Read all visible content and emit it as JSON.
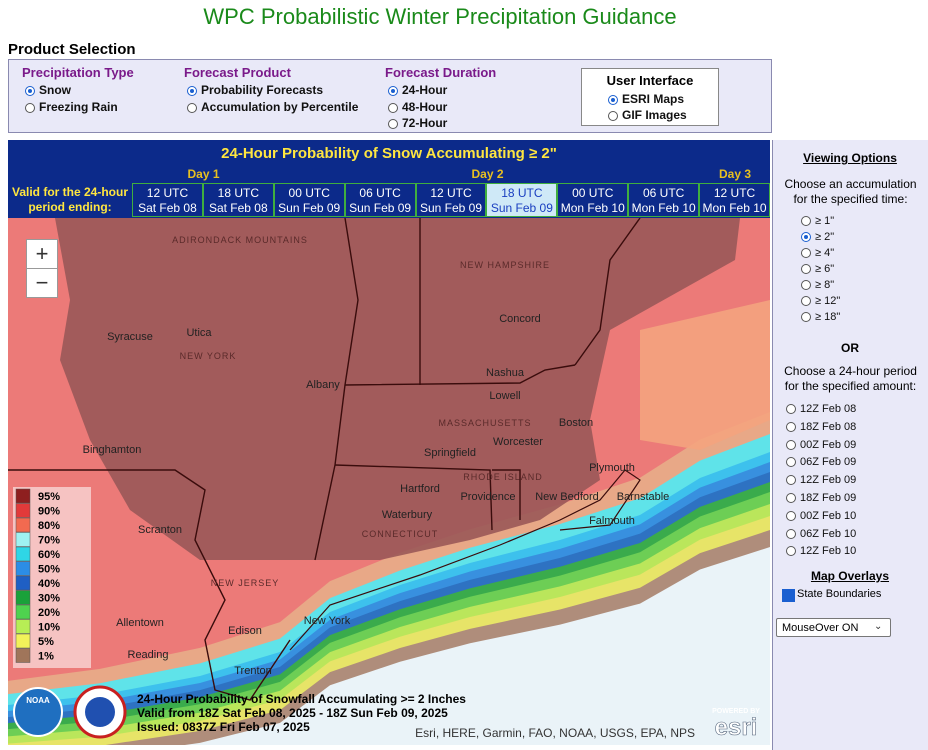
{
  "title": "WPC Probabilistic Winter Precipitation Guidance",
  "product_selection": {
    "heading": "Product Selection",
    "groups": [
      {
        "label": "Precipitation Type",
        "options": [
          {
            "label": "Snow",
            "checked": true
          },
          {
            "label": "Freezing Rain",
            "checked": false
          }
        ]
      },
      {
        "label": "Forecast Product",
        "options": [
          {
            "label": "Probability Forecasts",
            "checked": true
          },
          {
            "label": "Accumulation by Percentile",
            "checked": false
          }
        ]
      },
      {
        "label": "Forecast Duration",
        "options": [
          {
            "label": "24-Hour",
            "checked": true
          },
          {
            "label": "48-Hour",
            "checked": false
          },
          {
            "label": "72-Hour",
            "checked": false
          }
        ]
      }
    ],
    "user_interface": {
      "label": "User Interface",
      "options": [
        {
          "label": "ESRI Maps",
          "checked": true
        },
        {
          "label": "GIF Images",
          "checked": false
        }
      ]
    }
  },
  "map_header": {
    "title": "24-Hour Probability of Snow Accumulating ≥ 2\"",
    "days": [
      "Day 1",
      "Day 2",
      "Day 3"
    ],
    "valid_label": "Valid for the 24-hour period ending:",
    "periods": [
      {
        "time": "12 UTC",
        "date": "Sat Feb 08"
      },
      {
        "time": "18 UTC",
        "date": "Sat Feb 08"
      },
      {
        "time": "00 UTC",
        "date": "Sun Feb 09"
      },
      {
        "time": "06 UTC",
        "date": "Sun Feb 09"
      },
      {
        "time": "12 UTC",
        "date": "Sun Feb 09"
      },
      {
        "time": "18 UTC",
        "date": "Sun Feb 09"
      },
      {
        "time": "00 UTC",
        "date": "Mon Feb 10"
      },
      {
        "time": "06 UTC",
        "date": "Mon Feb 10"
      },
      {
        "time": "12 UTC",
        "date": "Mon Feb 10"
      }
    ],
    "selected_period": 5
  },
  "map": {
    "zoom_in": "+",
    "zoom_out": "−",
    "legend": [
      "95%",
      "90%",
      "80%",
      "70%",
      "60%",
      "50%",
      "40%",
      "30%",
      "20%",
      "10%",
      "5%",
      "1%"
    ],
    "labels": [
      "ADIRONDACK MOUNTAINS",
      "Syracuse",
      "Utica",
      "NEW YORK",
      "Albany",
      "Binghamton",
      "Scranton",
      "NEW JERSEY",
      "Allentown",
      "Edison",
      "New York",
      "Reading",
      "Trenton",
      "NEW HAMPSHIRE",
      "Concord",
      "Nashua",
      "Lowell",
      "MASSACHUSETTS",
      "Boston",
      "Worcester",
      "Springfield",
      "Hartford",
      "Waterbury",
      "CONNECTICUT",
      "Providence",
      "RHODE ISLAND",
      "New Bedford",
      "Plymouth",
      "Barnstable",
      "Falmouth"
    ],
    "caption": [
      "24-Hour Probability of Snowfall Accumulating >= 2 Inches",
      "Valid from 18Z Sat Feb 08, 2025 - 18Z Sun Feb 09, 2025",
      "Issued: 0837Z Fri Feb 07, 2025"
    ],
    "logo_text": "NOAA",
    "powered_by": "POWERED BY",
    "esri": "esri",
    "attribution": "Esri, HERE, Garmin, FAO, NOAA, USGS, EPA, NPS"
  },
  "viewing_options": {
    "heading": "Viewing Options",
    "accumulation_prompt": "Choose an accumulation for the specified time:",
    "accumulations": [
      {
        "label": "≥ 1\"",
        "checked": false
      },
      {
        "label": "≥ 2\"",
        "checked": true
      },
      {
        "label": "≥ 4\"",
        "checked": false
      },
      {
        "label": "≥ 6\"",
        "checked": false
      },
      {
        "label": "≥ 8\"",
        "checked": false
      },
      {
        "label": "≥ 12\"",
        "checked": false
      },
      {
        "label": "≥ 18\"",
        "checked": false
      }
    ],
    "or": "OR",
    "period_prompt": "Choose a 24-hour period for the specified amount:",
    "periods": [
      "12Z Feb 08",
      "18Z Feb 08",
      "00Z Feb 09",
      "06Z Feb 09",
      "12Z Feb 09",
      "18Z Feb 09",
      "00Z Feb 10",
      "06Z Feb 10",
      "12Z Feb 10"
    ],
    "overlays_heading": "Map Overlays",
    "overlays": [
      {
        "label": "State Boundaries",
        "checked": true
      }
    ],
    "mouseover": "MouseOver ON"
  }
}
